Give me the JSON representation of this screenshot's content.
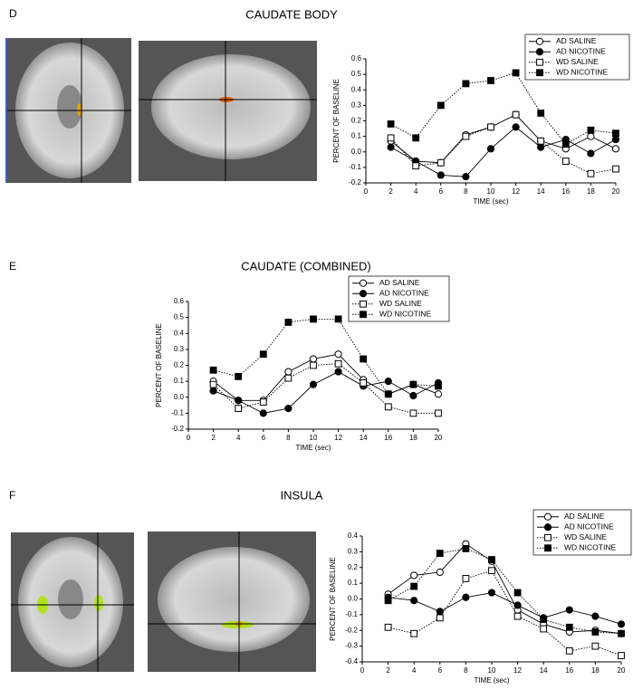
{
  "chart_data": [
    {
      "type": "line",
      "panel": "D",
      "title": "CAUDATE BODY",
      "x_label": "TIME (sec)",
      "y_label": "PERCENT OF BASELINE",
      "x": [
        2,
        4,
        6,
        8,
        10,
        12,
        14,
        16,
        18,
        20
      ],
      "xlim": [
        0,
        20
      ],
      "xticks": [
        0,
        2,
        4,
        6,
        8,
        10,
        12,
        14,
        16,
        18,
        20
      ],
      "ylim": [
        -0.2,
        0.6
      ],
      "yticks": [
        -0.2,
        -0.1,
        {
          "value": 0,
          "label": "0.0"
        },
        0.1,
        0.2,
        0.3,
        0.4,
        0.5,
        0.6
      ],
      "legend": "upper right",
      "series": [
        {
          "name": "AD SALINE",
          "color": "#000000",
          "marker": "circle",
          "filled": false,
          "dashed": false,
          "values": [
            0.07,
            -0.06,
            -0.07,
            0.11,
            0.16,
            0.24,
            0.07,
            0.02,
            0.1,
            0.02
          ]
        },
        {
          "name": "AD NICOTINE",
          "color": "#000000",
          "marker": "circle",
          "filled": true,
          "dashed": false,
          "values": [
            0.03,
            -0.06,
            -0.15,
            -0.16,
            0.02,
            0.16,
            0.03,
            0.08,
            -0.01,
            0.08
          ]
        },
        {
          "name": "WD SALINE",
          "color": "#000000",
          "marker": "square",
          "filled": false,
          "dashed": true,
          "values": [
            0.09,
            -0.09,
            -0.07,
            0.1,
            0.16,
            0.24,
            0.07,
            -0.06,
            -0.14,
            -0.11
          ]
        },
        {
          "name": "WD NICOTINE",
          "color": "#000000",
          "marker": "square",
          "filled": true,
          "dashed": true,
          "values": [
            0.18,
            0.09,
            0.3,
            0.44,
            0.46,
            0.51,
            0.25,
            0.05,
            0.14,
            0.12
          ]
        }
      ]
    },
    {
      "type": "line",
      "panel": "E",
      "title": "CAUDATE (COMBINED)",
      "x_label": "TIME (sec)",
      "y_label": "PERCENT OF BASELINE",
      "x": [
        2,
        4,
        6,
        8,
        10,
        12,
        14,
        16,
        18,
        20
      ],
      "xlim": [
        0,
        20
      ],
      "xticks": [
        0,
        2,
        4,
        6,
        8,
        10,
        12,
        14,
        16,
        18,
        20
      ],
      "ylim": [
        -0.2,
        0.6
      ],
      "yticks": [
        -0.2,
        -0.1,
        {
          "value": 0,
          "label": "0.0"
        },
        0.1,
        0.2,
        0.3,
        0.4,
        0.5,
        0.6
      ],
      "legend": "upper right",
      "series": [
        {
          "name": "AD SALINE",
          "color": "#000000",
          "marker": "circle",
          "filled": false,
          "dashed": false,
          "values": [
            0.1,
            -0.02,
            -0.02,
            0.16,
            0.24,
            0.27,
            0.11,
            0.02,
            0.08,
            0.02
          ]
        },
        {
          "name": "AD NICOTINE",
          "color": "#000000",
          "marker": "circle",
          "filled": true,
          "dashed": false,
          "values": [
            0.04,
            -0.02,
            -0.1,
            -0.07,
            0.08,
            0.16,
            0.07,
            0.1,
            0.01,
            0.09
          ]
        },
        {
          "name": "WD SALINE",
          "color": "#000000",
          "marker": "square",
          "filled": false,
          "dashed": true,
          "values": [
            0.08,
            -0.07,
            -0.03,
            0.12,
            0.2,
            0.21,
            0.09,
            -0.06,
            -0.1,
            -0.1
          ]
        },
        {
          "name": "WD NICOTINE",
          "color": "#000000",
          "marker": "square",
          "filled": true,
          "dashed": true,
          "values": [
            0.17,
            0.13,
            0.27,
            0.47,
            0.49,
            0.49,
            0.24,
            0.02,
            0.08,
            0.07
          ]
        }
      ]
    },
    {
      "type": "line",
      "panel": "F",
      "title": "INSULA",
      "x_label": "TIME (sec)",
      "y_label": "PERCENT OF BASELINE",
      "x": [
        2,
        4,
        6,
        8,
        10,
        12,
        14,
        16,
        18,
        20
      ],
      "xlim": [
        0,
        20
      ],
      "xticks": [
        0,
        2,
        4,
        6,
        8,
        10,
        12,
        14,
        16,
        18,
        20
      ],
      "ylim": [
        -0.4,
        0.4
      ],
      "yticks": [
        -0.4,
        -0.3,
        -0.2,
        -0.1,
        {
          "value": 0,
          "label": "0.0"
        },
        0.1,
        0.2,
        0.3,
        0.4
      ],
      "legend": "upper right",
      "series": [
        {
          "name": "AD SALINE",
          "color": "#000000",
          "marker": "circle",
          "filled": false,
          "dashed": false,
          "values": [
            0.03,
            0.15,
            0.17,
            0.35,
            0.24,
            -0.07,
            -0.16,
            -0.21,
            -0.2,
            -0.22
          ]
        },
        {
          "name": "AD NICOTINE",
          "color": "#000000",
          "marker": "circle",
          "filled": true,
          "dashed": false,
          "values": [
            0.01,
            -0.01,
            -0.08,
            0.01,
            0.04,
            -0.04,
            -0.12,
            -0.07,
            -0.11,
            -0.16
          ]
        },
        {
          "name": "WD SALINE",
          "color": "#000000",
          "marker": "square",
          "filled": false,
          "dashed": true,
          "values": [
            -0.18,
            -0.22,
            -0.12,
            0.13,
            0.18,
            -0.11,
            -0.19,
            -0.33,
            -0.3,
            -0.36
          ]
        },
        {
          "name": "WD NICOTINE",
          "color": "#000000",
          "marker": "square",
          "filled": true,
          "dashed": true,
          "values": [
            -0.01,
            0.08,
            0.29,
            0.32,
            0.25,
            0.04,
            -0.13,
            -0.18,
            -0.21,
            -0.22
          ]
        }
      ]
    }
  ]
}
